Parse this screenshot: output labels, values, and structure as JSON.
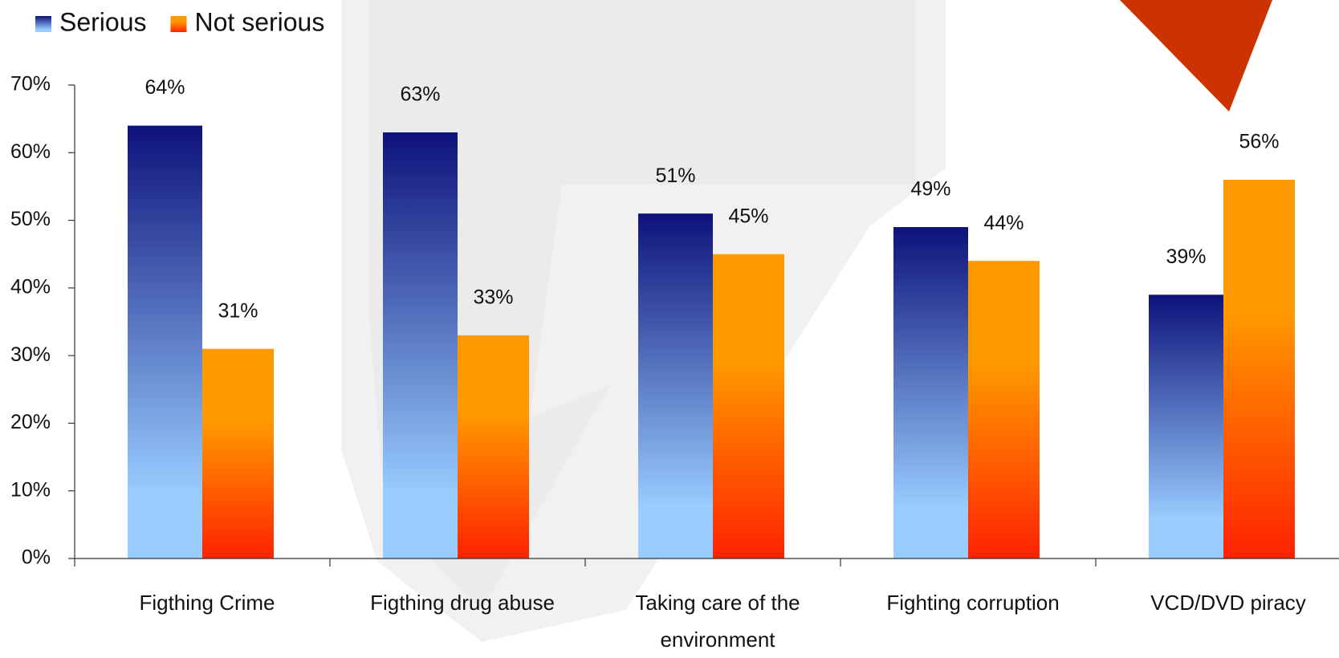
{
  "chart_data": {
    "type": "bar",
    "categories": [
      "Figthing Crime",
      "Figthing drug abuse",
      "Taking care of the environment",
      "Fighting corruption",
      "VCD/DVD piracy"
    ],
    "series": [
      {
        "name": "Serious",
        "color": "#0d127a",
        "values": [
          64,
          63,
          51,
          49,
          39
        ],
        "value_labels": [
          "64%",
          "63%",
          "51%",
          "49%",
          "39%"
        ]
      },
      {
        "name": "Not serious",
        "color": "#ff9900",
        "values": [
          31,
          33,
          45,
          44,
          56
        ],
        "value_labels": [
          "31%",
          "33%",
          "45%",
          "44%",
          "56%"
        ]
      }
    ],
    "ylim": [
      0,
      70
    ],
    "yticks": [
      {
        "value": 0,
        "label": "0%"
      },
      {
        "value": 10,
        "label": "10%"
      },
      {
        "value": 20,
        "label": "20%"
      },
      {
        "value": 30,
        "label": "30%"
      },
      {
        "value": 40,
        "label": "40%"
      },
      {
        "value": 50,
        "label": "50%"
      },
      {
        "value": 60,
        "label": "60%"
      },
      {
        "value": 70,
        "label": "70%"
      }
    ],
    "legend": "top-left"
  }
}
